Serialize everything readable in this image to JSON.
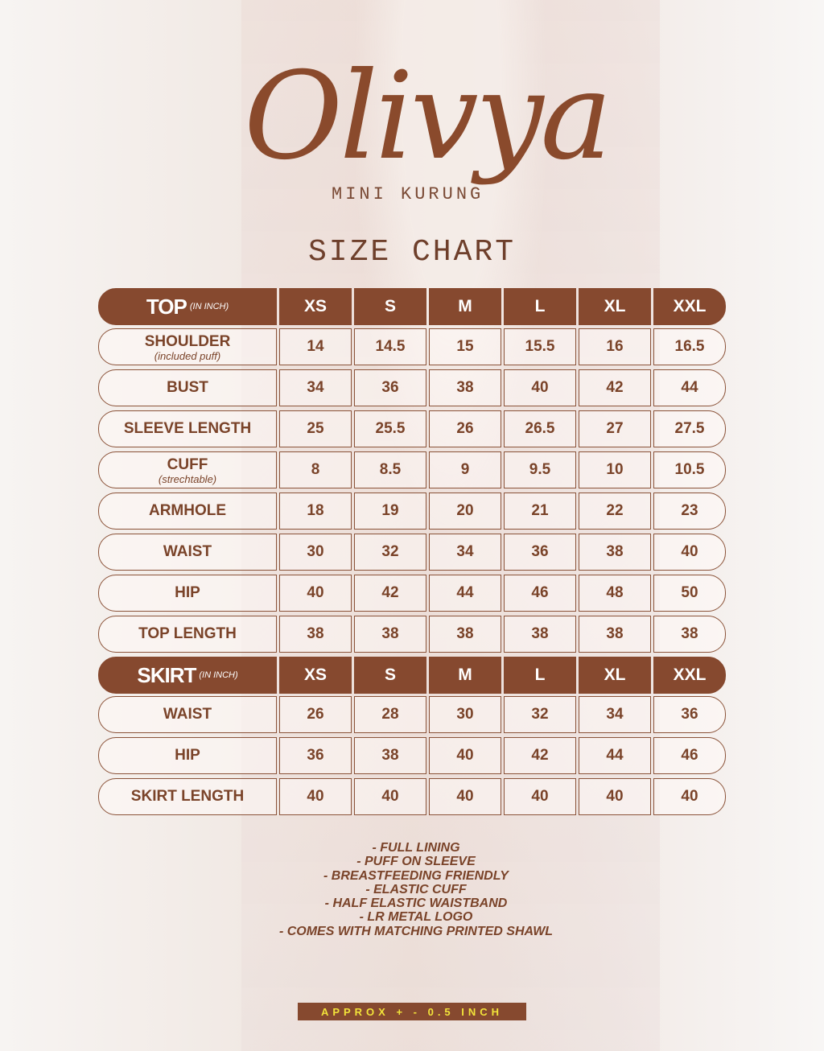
{
  "brand": {
    "logo": "Olivya",
    "subtitle": "MINI KURUNG"
  },
  "title": "SIZE CHART",
  "sizes": [
    "XS",
    "S",
    "M",
    "L",
    "XL",
    "XXL"
  ],
  "top": {
    "label": "TOP",
    "unit": "(IN INCH)",
    "rows": [
      {
        "label": "SHOULDER",
        "note": "(included puff)",
        "values": [
          "14",
          "14.5",
          "15",
          "15.5",
          "16",
          "16.5"
        ]
      },
      {
        "label": "BUST",
        "values": [
          "34",
          "36",
          "38",
          "40",
          "42",
          "44"
        ]
      },
      {
        "label": "SLEEVE LENGTH",
        "values": [
          "25",
          "25.5",
          "26",
          "26.5",
          "27",
          "27.5"
        ]
      },
      {
        "label": "CUFF",
        "note": "(strechtable)",
        "values": [
          "8",
          "8.5",
          "9",
          "9.5",
          "10",
          "10.5"
        ]
      },
      {
        "label": "ARMHOLE",
        "values": [
          "18",
          "19",
          "20",
          "21",
          "22",
          "23"
        ]
      },
      {
        "label": "WAIST",
        "values": [
          "30",
          "32",
          "34",
          "36",
          "38",
          "40"
        ]
      },
      {
        "label": "HIP",
        "values": [
          "40",
          "42",
          "44",
          "46",
          "48",
          "50"
        ]
      },
      {
        "label": "TOP LENGTH",
        "values": [
          "38",
          "38",
          "38",
          "38",
          "38",
          "38"
        ]
      }
    ]
  },
  "skirt": {
    "label": "SKIRT",
    "unit": "(IN INCH)",
    "rows": [
      {
        "label": "WAIST",
        "values": [
          "26",
          "28",
          "30",
          "32",
          "34",
          "36"
        ]
      },
      {
        "label": "HIP",
        "values": [
          "36",
          "38",
          "40",
          "42",
          "44",
          "46"
        ]
      },
      {
        "label": "SKIRT LENGTH",
        "values": [
          "40",
          "40",
          "40",
          "40",
          "40",
          "40"
        ]
      }
    ]
  },
  "features": [
    "- FULL LINING",
    "- PUFF ON SLEEVE",
    "-  BREASTFEEDING FRIENDLY",
    "-  ELASTIC CUFF",
    "-  HALF ELASTIC WAISTBAND",
    "-  LR METAL LOGO",
    "-  COMES WITH MATCHING PRINTED SHAWL"
  ],
  "approx": "APPROX + - 0.5 INCH",
  "colors": {
    "brown": "#86492f",
    "text": "#7a4329",
    "approx_text": "#f2e33a"
  }
}
